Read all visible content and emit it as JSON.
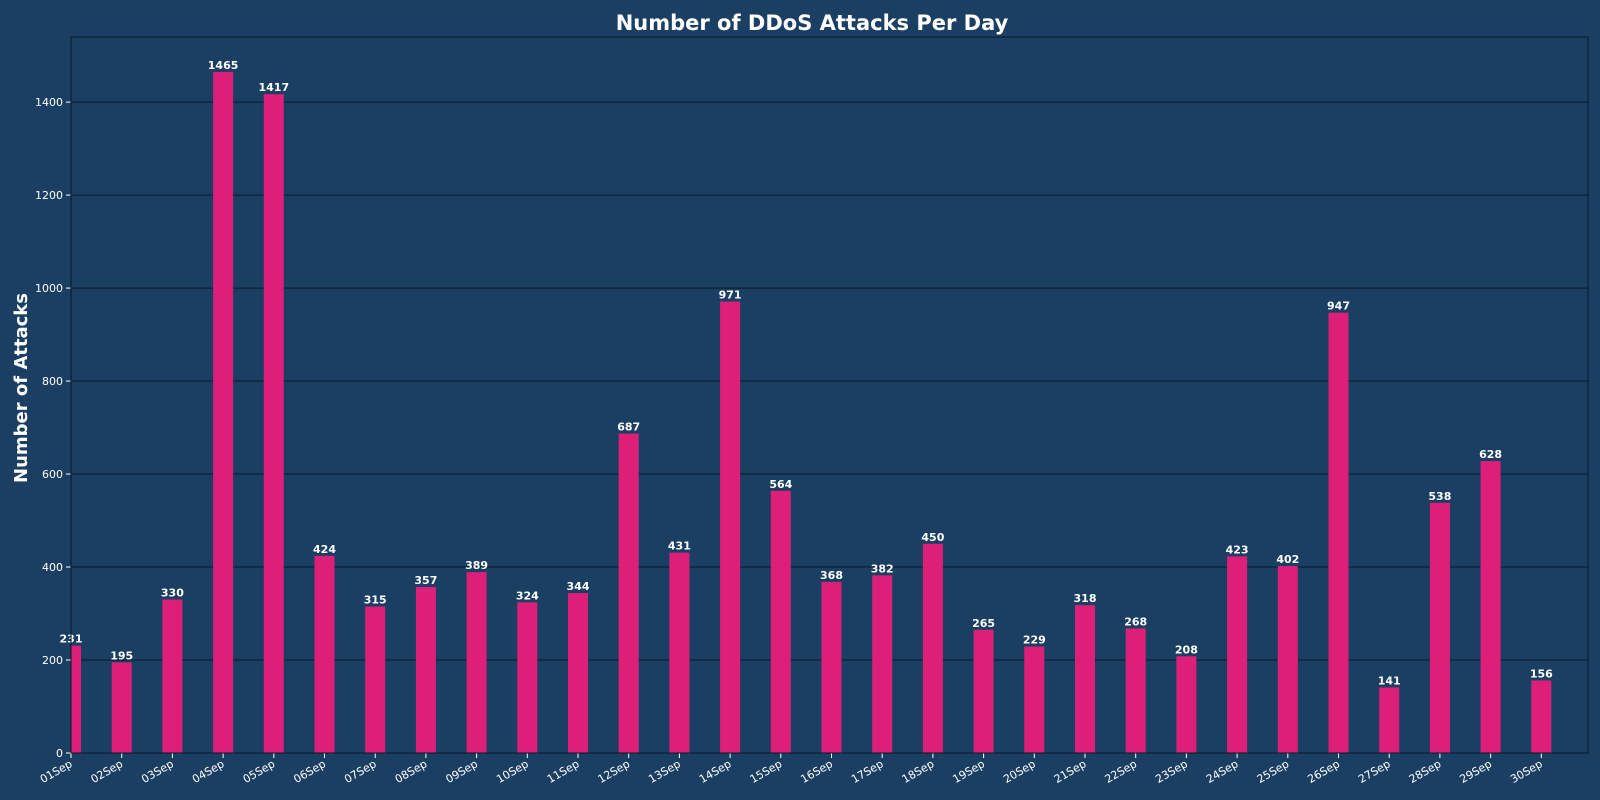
{
  "chart_data": {
    "type": "bar",
    "title": "Number of DDoS Attacks Per Day",
    "xlabel": "",
    "ylabel": "Number of Attacks",
    "categories": [
      "01Sep",
      "02Sep",
      "03Sep",
      "04Sep",
      "05Sep",
      "06Sep",
      "07Sep",
      "08Sep",
      "09Sep",
      "10Sep",
      "11Sep",
      "12Sep",
      "13Sep",
      "14Sep",
      "15Sep",
      "16Sep",
      "17Sep",
      "18Sep",
      "19Sep",
      "20Sep",
      "21Sep",
      "22Sep",
      "23Sep",
      "24Sep",
      "25Sep",
      "26Sep",
      "27Sep",
      "28Sep",
      "29Sep",
      "30Sep"
    ],
    "values": [
      231,
      195,
      330,
      1465,
      1417,
      424,
      315,
      357,
      389,
      324,
      344,
      687,
      431,
      971,
      564,
      368,
      382,
      450,
      265,
      229,
      318,
      268,
      208,
      423,
      402,
      947,
      141,
      538,
      628,
      156
    ],
    "ylim": [
      0,
      1540
    ],
    "yticks": [
      0,
      200,
      400,
      600,
      800,
      1000,
      1200,
      1400
    ],
    "grid": true,
    "legend": "none",
    "colors": {
      "background": "#1b3f63",
      "bar": "#de1f7a",
      "grid": "#0a1a2a",
      "text": "#ffffff"
    }
  }
}
